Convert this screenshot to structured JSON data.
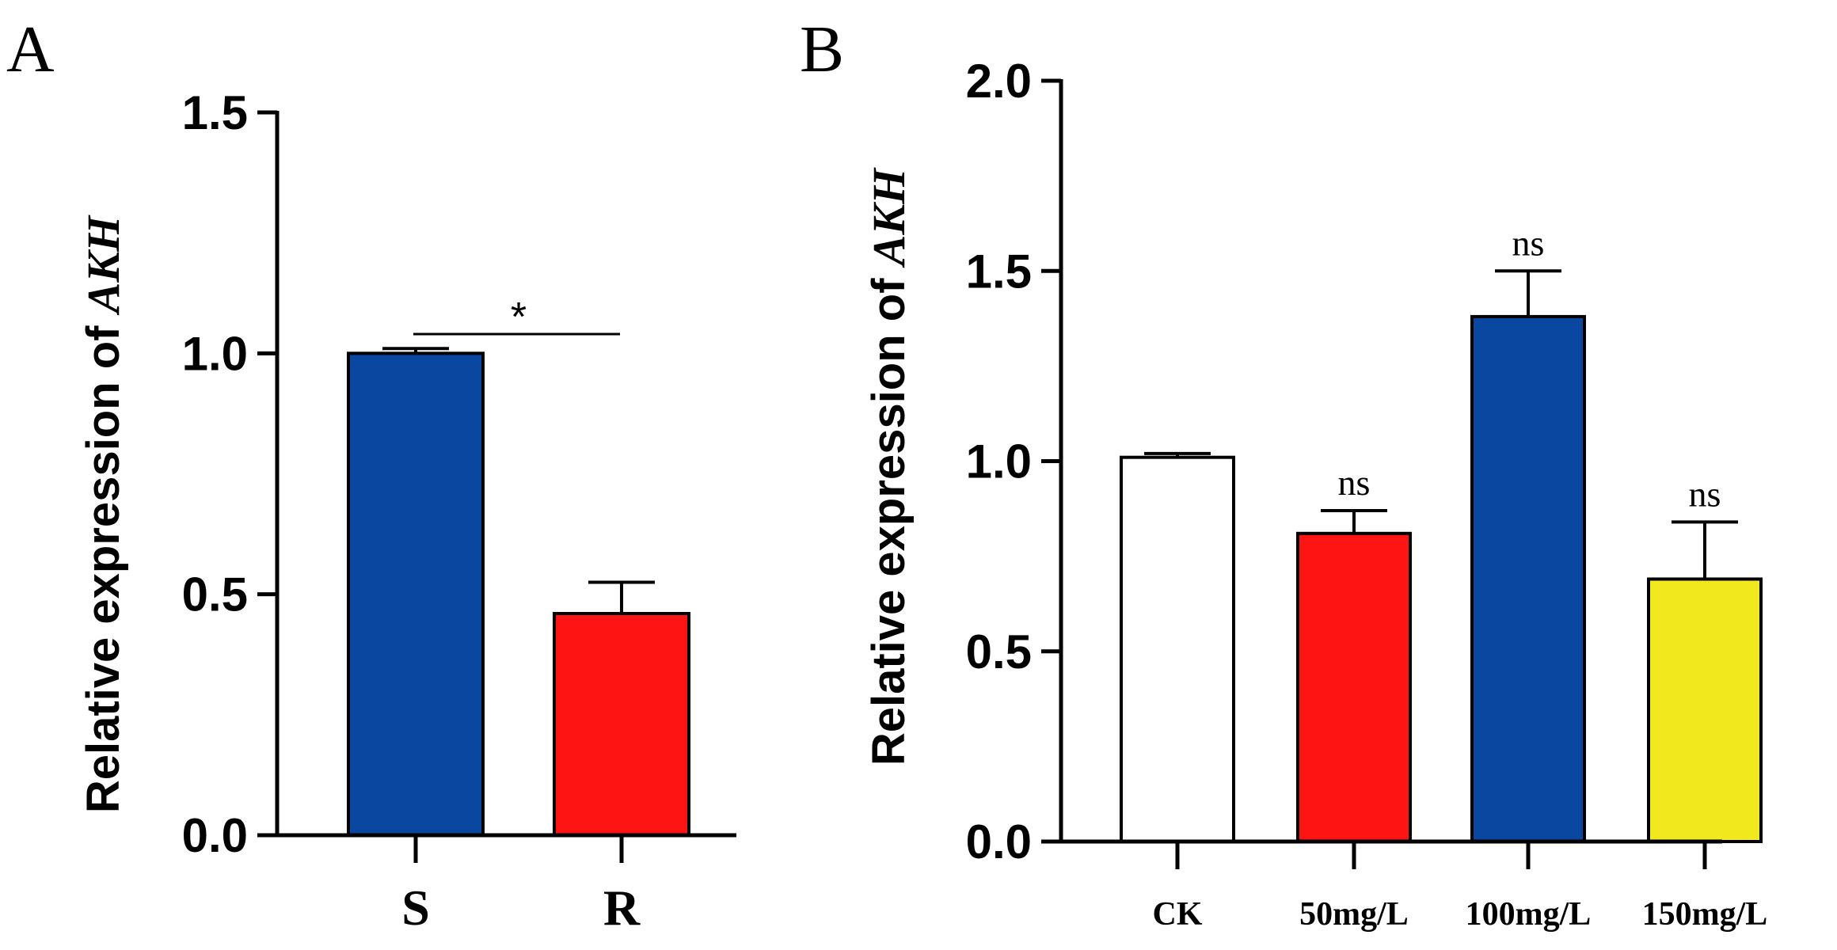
{
  "chart_data": [
    {
      "panel": "A",
      "type": "bar",
      "ylabel": "Relative expression of ",
      "ylabel_gene": "AKH",
      "ylim": [
        0,
        1.5
      ],
      "yticks": [
        "0.0",
        "0.5",
        "1.0",
        "1.5"
      ],
      "ytick_values": [
        0,
        0.5,
        1.0,
        1.5
      ],
      "categories": [
        "S",
        "R"
      ],
      "values": [
        1.0,
        0.46
      ],
      "errors": [
        0.01,
        0.065
      ],
      "colors": [
        "#0a47a1",
        "#ff1414"
      ],
      "significance": {
        "label": "*",
        "from": 0,
        "to": 1
      }
    },
    {
      "panel": "B",
      "type": "bar",
      "ylabel": "Relative expression of ",
      "ylabel_gene": "AKH",
      "ylim": [
        0,
        2.0
      ],
      "yticks": [
        "0.0",
        "0.5",
        "1.0",
        "1.5",
        "2.0"
      ],
      "ytick_values": [
        0,
        0.5,
        1.0,
        1.5,
        2.0
      ],
      "categories": [
        "CK",
        "50mg/L",
        "100mg/L",
        "150mg/L"
      ],
      "values": [
        1.01,
        0.81,
        1.38,
        0.69
      ],
      "errors": [
        0.01,
        0.06,
        0.12,
        0.15
      ],
      "colors": [
        "#ffffff",
        "#ff1414",
        "#0a47a1",
        "#f2e81e"
      ],
      "annotations": [
        "",
        "ns",
        "ns",
        "ns"
      ]
    }
  ]
}
